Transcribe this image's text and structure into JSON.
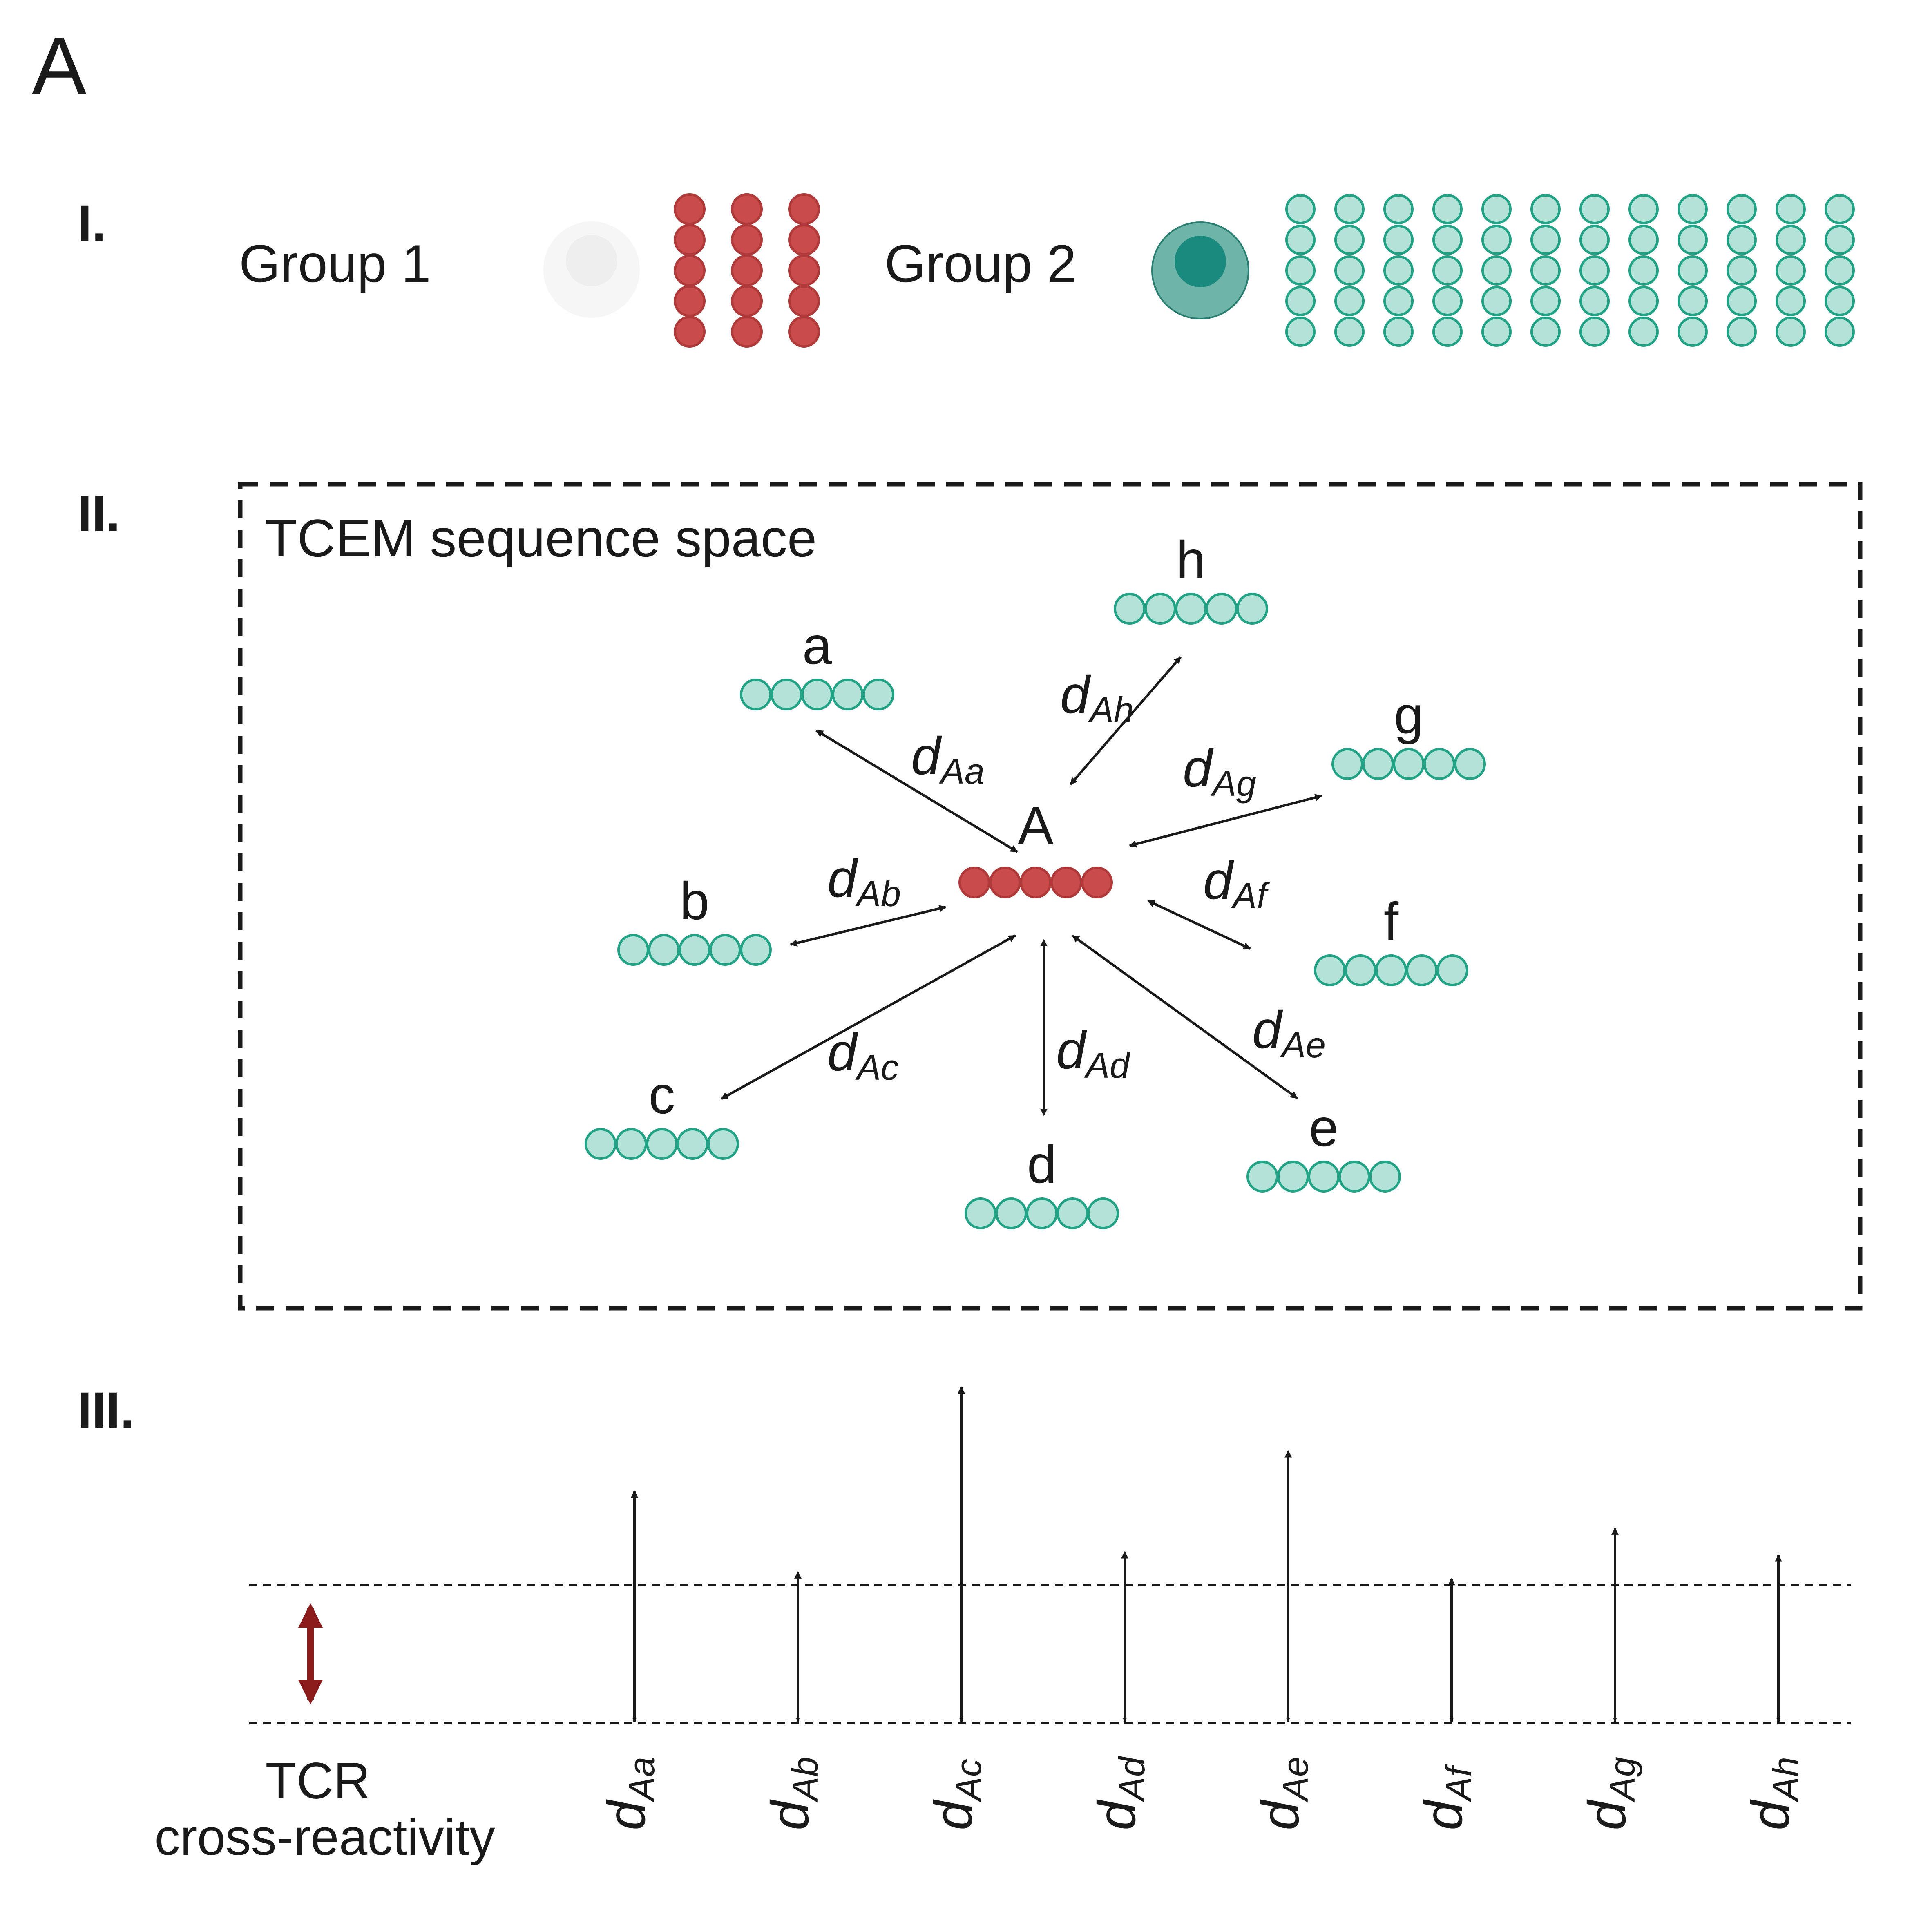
{
  "panel_label": "A",
  "section_labels": [
    "I.",
    "II.",
    "III."
  ],
  "groups": [
    {
      "label": "Group 1",
      "cell_fill": "#eeeeee",
      "cell_rim": "#f6f6f6",
      "column_count": 3,
      "dots_per_column": 5,
      "dot_fill": "#c94b4b",
      "dot_stroke": "#b03a3a"
    },
    {
      "label": "Group 2",
      "cell_fill": "#1b8a7e",
      "cell_rim": "#6fb4a8",
      "column_count": 12,
      "dots_per_column": 5,
      "dot_fill": "#b3e2d6",
      "dot_stroke": "#22a386"
    }
  ],
  "sequence_space": {
    "title": "TCEM sequence space",
    "center": {
      "label": "A"
    },
    "neighbors": [
      {
        "label": "a",
        "distance_main": "d",
        "distance_sub": "Aa"
      },
      {
        "label": "b",
        "distance_main": "d",
        "distance_sub": "Ab"
      },
      {
        "label": "c",
        "distance_main": "d",
        "distance_sub": "Ac"
      },
      {
        "label": "d",
        "distance_main": "d",
        "distance_sub": "Ad"
      },
      {
        "label": "e",
        "distance_main": "d",
        "distance_sub": "Ae"
      },
      {
        "label": "f",
        "distance_main": "d",
        "distance_sub": "Af"
      },
      {
        "label": "g",
        "distance_main": "d",
        "distance_sub": "Ag"
      },
      {
        "label": "h",
        "distance_main": "d",
        "distance_sub": "Ah"
      }
    ]
  },
  "cross_reactivity": {
    "label_line1": "TCR",
    "label_line2": "cross-reactivity",
    "threshold_color": "#8b1a1a",
    "bars": [
      {
        "main": "d",
        "sub": "Aa",
        "relative_length": 0.69
      },
      {
        "main": "d",
        "sub": "Ab",
        "relative_length": 0.45
      },
      {
        "main": "d",
        "sub": "Ac",
        "relative_length": 1.0
      },
      {
        "main": "d",
        "sub": "Ad",
        "relative_length": 0.51
      },
      {
        "main": "d",
        "sub": "Ae",
        "relative_length": 0.81
      },
      {
        "main": "d",
        "sub": "Af",
        "relative_length": 0.43
      },
      {
        "main": "d",
        "sub": "Ag",
        "relative_length": 0.58
      },
      {
        "main": "d",
        "sub": "Ah",
        "relative_length": 0.5
      }
    ]
  },
  "colors": {
    "red": "#c94b4b",
    "teal_fill": "#b3e2d6",
    "teal_stroke": "#22a386",
    "ink": "#1a1a1a"
  }
}
